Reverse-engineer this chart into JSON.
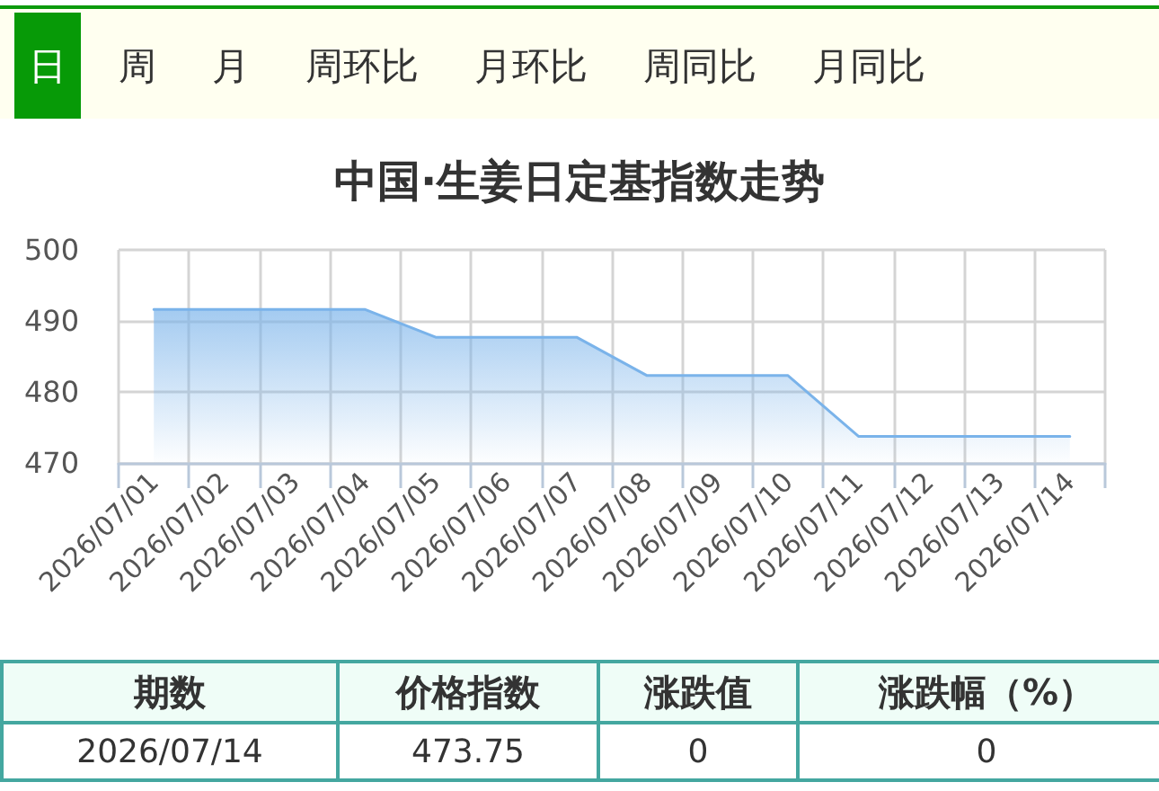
{
  "chart_data": {
    "type": "area",
    "title": "中国·生姜日定基指数走势",
    "categories": [
      "2026/07/01",
      "2026/07/02",
      "2026/07/03",
      "2026/07/04",
      "2026/07/05",
      "2026/07/06",
      "2026/07/07",
      "2026/07/08",
      "2026/07/09",
      "2026/07/10",
      "2026/07/11",
      "2026/07/12",
      "2026/07/13",
      "2026/07/14"
    ],
    "values": [
      491.6,
      491.6,
      491.6,
      491.6,
      487.7,
      487.7,
      487.7,
      482.3,
      482.3,
      482.3,
      473.75,
      473.75,
      473.75,
      473.75
    ],
    "color": "#7ab3ea",
    "ylim": [
      470,
      500
    ],
    "yticks": [
      470,
      480,
      490,
      500
    ],
    "grid": true,
    "annotations": [
      "日",
      "周",
      "月",
      "周环比",
      "月环比",
      "周同比",
      "月同比",
      "期数",
      "价格指数",
      "涨跌值",
      "涨跌幅（%）",
      "2026/07/14",
      "473.75",
      "0",
      "0"
    ]
  }
}
